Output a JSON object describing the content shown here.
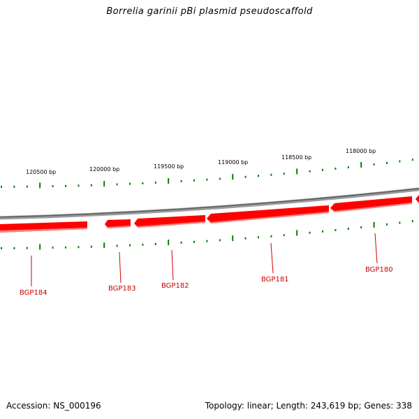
{
  "title": "Borrelia garinii pBi plasmid pseudoscaffold",
  "footer": {
    "accession": "Accession: NS_000196",
    "summary": "Topology: linear; Length: 243,619 bp; Genes: 338"
  },
  "ticks": [
    {
      "label": "120500 bp"
    },
    {
      "label": "120000 bp"
    },
    {
      "label": "119500 bp"
    },
    {
      "label": "119000 bp"
    },
    {
      "label": "118500 bp"
    },
    {
      "label": "118000 bp"
    }
  ],
  "genes": [
    {
      "label": "BGP184"
    },
    {
      "label": "BGP183"
    },
    {
      "label": "BGP182"
    },
    {
      "label": "BGP181"
    },
    {
      "label": "BGP180"
    }
  ],
  "colors": {
    "backbone": "#7a7a7a",
    "gene_fill": "#ff0000",
    "gene_shade": "#ff7070",
    "ticks": "#008000",
    "gene_label": "#cc0000"
  }
}
